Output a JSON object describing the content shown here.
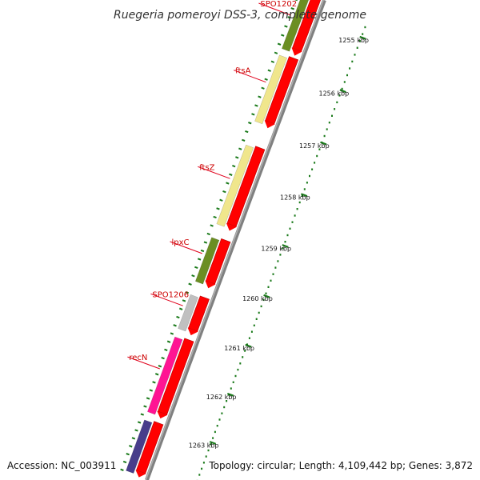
{
  "title": "Ruegeria pomeroyi DSS-3, complete genome",
  "accession_text": "Accession: NC_003911",
  "summary_text": "Topology: circular; Length: 4,109,442 bp; Genes: 3,872",
  "colors": {
    "backbone": "#808080",
    "forward_cds": "#ff0000",
    "ruler": "#1a7a1a",
    "label_line": "#e0001b",
    "label_text": "#cc0000",
    "category_olive": "#6b8e23",
    "category_pale_yellow": "#f0e68c",
    "category_grey": "#c0c0c0",
    "category_pink": "#ff1493",
    "category_navy": "#483d8b"
  },
  "ruler_ticks": [
    {
      "label": "1255 kbp",
      "t": 0.04
    },
    {
      "label": "1256 kbp",
      "t": 0.145
    },
    {
      "label": "1257 kbp",
      "t": 0.25
    },
    {
      "label": "1258 kbp",
      "t": 0.355
    },
    {
      "label": "1259 kbp",
      "t": 0.46
    },
    {
      "label": "1260 kbp",
      "t": 0.565
    },
    {
      "label": "1261 kbp",
      "t": 0.67
    },
    {
      "label": "1262 kbp",
      "t": 0.775
    },
    {
      "label": "1263 kbp",
      "t": 0.88
    }
  ],
  "genes": [
    {
      "name": "SPO1202",
      "category_color": "#6b8e23",
      "start": 0.0,
      "end": 0.115
    },
    {
      "name": "ftsA",
      "category_color": "#f0e68c",
      "start": 0.12,
      "end": 0.26
    },
    {
      "name": "ftsZ",
      "category_color": "#f0e68c",
      "start": 0.3,
      "end": 0.47
    },
    {
      "name": "lpxC",
      "category_color": "#6b8e23",
      "start": 0.49,
      "end": 0.59
    },
    {
      "name": "SPO1206",
      "category_color": "#c0c0c0",
      "start": 0.61,
      "end": 0.69
    },
    {
      "name": "recN",
      "category_color": "#ff1493",
      "start": 0.7,
      "end": 0.87
    },
    {
      "name": "",
      "category_color": "#483d8b",
      "start": 0.88,
      "end": 1.0
    }
  ]
}
